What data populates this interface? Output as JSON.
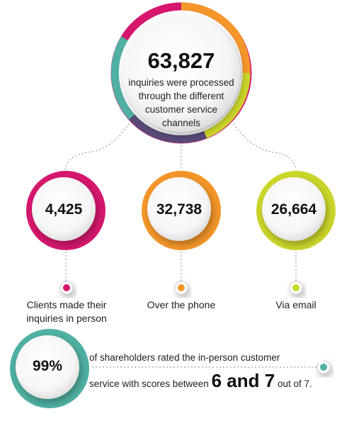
{
  "total": {
    "value": "63,827",
    "description": "inquiries were processed through the different customer service channels"
  },
  "channels": [
    {
      "value": "4,425",
      "label": "Clients made their inquiries in person",
      "color": "#d6176e"
    },
    {
      "value": "32,738",
      "label": "Over the phone",
      "color": "#f5962a"
    },
    {
      "value": "26,664",
      "label": "Via email",
      "color": "#ccd62a"
    }
  ],
  "satisfaction": {
    "value": "99%",
    "text_before": "of shareholders rated the in-person customer",
    "text_line2_start": "service with scores between",
    "score_range": "6 and 7",
    "text_after": "out of 7.",
    "color": "#4fb0a3"
  },
  "colors": {
    "top_ring_segments": [
      "#d6176e",
      "#f5962a",
      "#ccd62a",
      "#5a4a78",
      "#4fb0a3"
    ],
    "connector": "#8a8a8a"
  }
}
